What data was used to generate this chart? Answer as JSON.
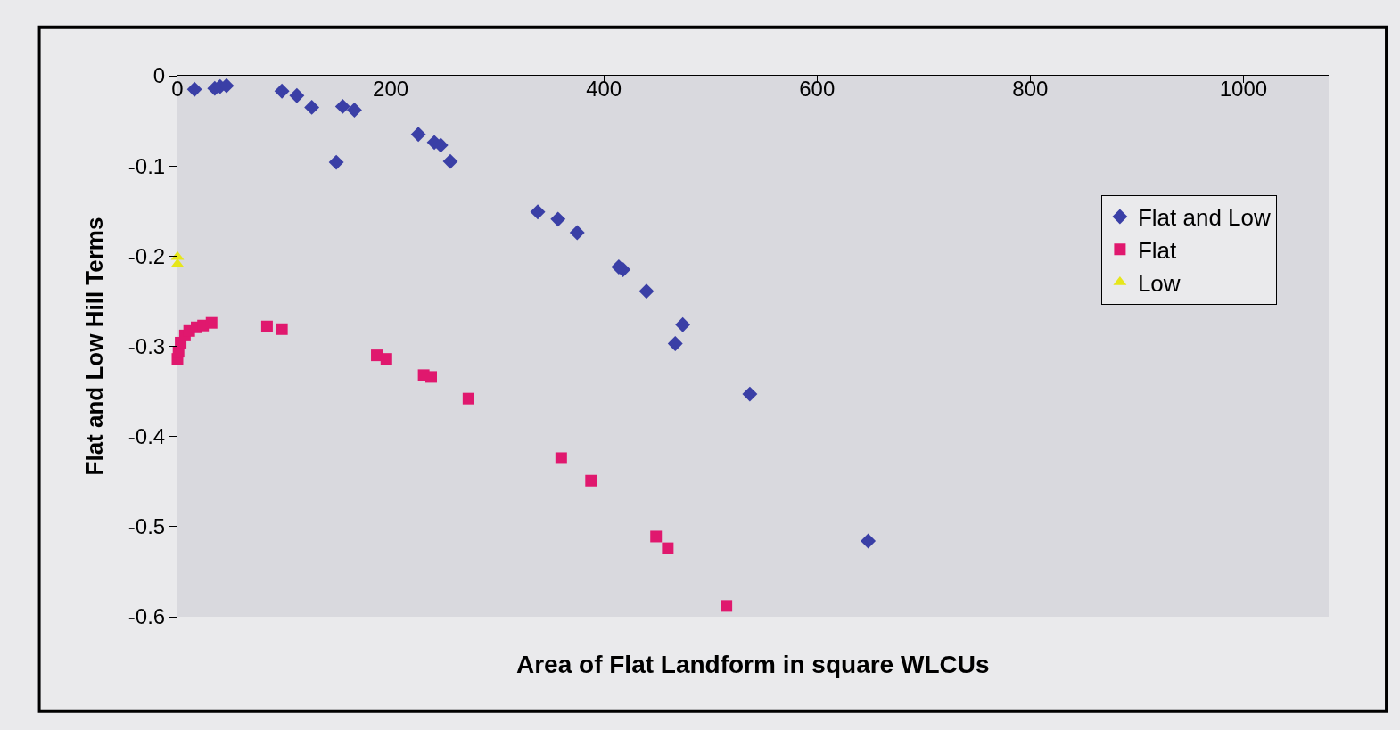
{
  "chart_data": {
    "type": "scatter",
    "xlabel": "Area of Flat Landform in square WLCUs",
    "ylabel": "Flat and Low Hill Terms",
    "xlim": [
      0,
      1080
    ],
    "xticks": [
      0,
      200,
      400,
      600,
      800,
      1000
    ],
    "ylim": [
      -0.6,
      0
    ],
    "yticks": [
      0,
      -0.1,
      -0.2,
      -0.3,
      -0.4,
      -0.5,
      -0.6
    ],
    "grid": false,
    "legend": "top right",
    "series": [
      {
        "name": "Flat and Low",
        "color": "#3a3fa6",
        "marker": "diamond",
        "x": [
          16,
          35,
          40,
          46,
          98,
          112,
          126,
          149,
          155,
          166,
          226,
          241,
          247,
          256,
          338,
          357,
          375,
          414,
          418,
          440,
          474,
          467,
          537,
          648
        ],
        "values": [
          -0.015,
          -0.014,
          -0.012,
          -0.011,
          -0.017,
          -0.022,
          -0.035,
          -0.096,
          -0.034,
          -0.038,
          -0.065,
          -0.074,
          -0.077,
          -0.095,
          -0.151,
          -0.159,
          -0.174,
          -0.212,
          -0.215,
          -0.239,
          -0.276,
          -0.297,
          -0.353,
          -0.516
        ]
      },
      {
        "name": "Flat",
        "color": "#e0186e",
        "marker": "square",
        "x": [
          0,
          1,
          3,
          7,
          11,
          18,
          24,
          32,
          84,
          98,
          187,
          196,
          231,
          238,
          273,
          360,
          388,
          449,
          460,
          515
        ],
        "values": [
          -0.314,
          -0.306,
          -0.296,
          -0.288,
          -0.283,
          -0.279,
          -0.277,
          -0.274,
          -0.278,
          -0.281,
          -0.31,
          -0.314,
          -0.332,
          -0.334,
          -0.358,
          -0.424,
          -0.449,
          -0.511,
          -0.524,
          -0.588
        ]
      },
      {
        "name": "Low",
        "color": "#e6e61a",
        "marker": "triangle",
        "x": [
          0,
          0
        ],
        "values": [
          -0.201,
          -0.209
        ]
      }
    ]
  }
}
